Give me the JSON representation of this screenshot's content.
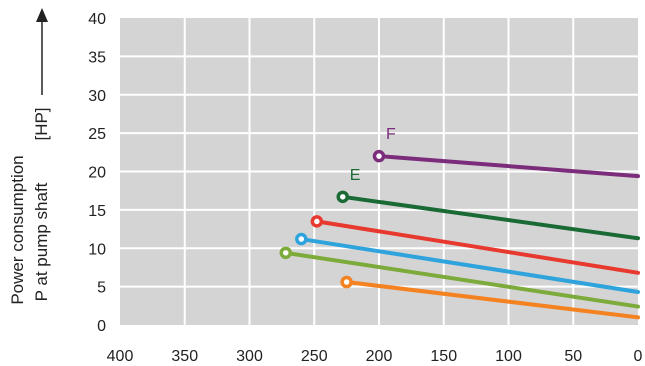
{
  "chart_data": {
    "type": "line",
    "title": "",
    "xlabel": "",
    "ylabel_line1": "Power consumption",
    "ylabel_line2": "P at pump shaft",
    "ylabel_unit": "[HP]",
    "xlim": [
      400,
      0
    ],
    "ylim": [
      0,
      40
    ],
    "x_ticks": [
      400,
      350,
      300,
      250,
      200,
      150,
      100,
      50,
      0
    ],
    "y_ticks": [
      0,
      5,
      10,
      15,
      20,
      25,
      30,
      35,
      40
    ],
    "grid": true,
    "plot_background": "#d4d4d4",
    "grid_color": "#ffffff",
    "series": [
      {
        "name": "F",
        "color": "#7b2c7a",
        "x": [
          200,
          0
        ],
        "y": [
          22,
          19.4
        ]
      },
      {
        "name": "E",
        "color": "#1a6a35",
        "x": [
          228,
          0
        ],
        "y": [
          16.7,
          11.3
        ]
      },
      {
        "color": "#e8392f",
        "x": [
          248,
          0
        ],
        "y": [
          13.5,
          6.8
        ]
      },
      {
        "color": "#2ea3dc",
        "x": [
          260,
          0
        ],
        "y": [
          11.2,
          4.3
        ]
      },
      {
        "color": "#7cab3c",
        "x": [
          272,
          0
        ],
        "y": [
          9.4,
          2.4
        ]
      },
      {
        "color": "#f48221",
        "x": [
          225,
          0
        ],
        "y": [
          5.6,
          1.0
        ]
      }
    ]
  }
}
